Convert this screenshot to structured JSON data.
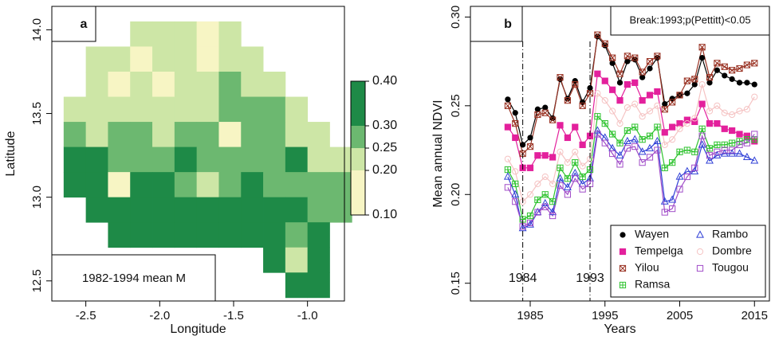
{
  "chart_data": [
    {
      "type": "heatmap",
      "panel_label": "a",
      "legend_text": "1982-1994 mean M",
      "x_label": "Longitude",
      "y_label": "Latitude",
      "xlim": [
        -2.73,
        -0.75
      ],
      "ylim": [
        12.38,
        14.14
      ],
      "xticks": [
        -2.5,
        {
          "value": -2.0,
          "label": "-2.0"
        },
        -1.5,
        {
          "value": -1.0,
          "label": "-1.0"
        }
      ],
      "yticks": [
        12.5,
        {
          "value": 13.0,
          "label": "13.0"
        },
        13.5,
        {
          "value": 14.0,
          "label": "14.0"
        }
      ],
      "x": [
        -2.575,
        -2.425,
        -2.275,
        -2.125,
        -1.975,
        -1.825,
        -1.675,
        -1.525,
        -1.375,
        -1.225,
        -1.075,
        -0.925,
        -0.775
      ],
      "y": [
        13.975,
        13.825,
        13.675,
        13.525,
        13.375,
        13.225,
        13.075,
        12.925,
        12.775,
        12.625,
        12.475
      ],
      "z": [
        [
          null,
          null,
          null,
          0.22,
          0.22,
          0.22,
          0.15,
          0.22,
          null,
          null,
          null,
          null,
          null
        ],
        [
          null,
          0.22,
          0.22,
          0.15,
          0.22,
          0.22,
          0.15,
          0.22,
          0.22,
          null,
          null,
          null,
          null
        ],
        [
          null,
          0.22,
          0.15,
          0.22,
          0.15,
          0.22,
          0.22,
          0.27,
          0.22,
          0.22,
          null,
          null,
          null
        ],
        [
          0.22,
          0.22,
          0.22,
          0.22,
          0.22,
          0.22,
          0.22,
          0.27,
          0.27,
          0.27,
          0.22,
          null,
          null
        ],
        [
          0.27,
          0.22,
          0.27,
          0.27,
          0.22,
          0.27,
          0.27,
          0.15,
          0.27,
          0.27,
          0.22,
          0.22,
          null
        ],
        [
          0.33,
          0.33,
          0.27,
          0.27,
          0.27,
          0.33,
          0.27,
          0.27,
          0.27,
          0.27,
          0.33,
          0.22,
          0.22
        ],
        [
          0.33,
          0.33,
          0.15,
          0.33,
          0.33,
          0.27,
          0.22,
          0.27,
          0.33,
          0.27,
          0.27,
          0.27,
          0.27
        ],
        [
          null,
          0.33,
          0.33,
          0.33,
          0.33,
          0.33,
          0.33,
          0.33,
          0.33,
          0.33,
          0.33,
          0.27,
          0.27
        ],
        [
          null,
          null,
          0.33,
          0.33,
          0.33,
          0.33,
          0.33,
          0.33,
          0.33,
          0.33,
          0.27,
          0.33,
          null
        ],
        [
          null,
          null,
          null,
          null,
          null,
          null,
          null,
          null,
          null,
          0.33,
          0.22,
          0.33,
          null
        ],
        [
          null,
          null,
          null,
          null,
          null,
          null,
          null,
          null,
          null,
          null,
          0.33,
          0.33,
          null
        ]
      ],
      "clim": [
        0.1,
        0.4
      ],
      "cticks": [
        {
          "value": 0.1,
          "label": "0.10"
        },
        {
          "value": 0.2,
          "label": "0.20"
        },
        {
          "value": 0.25,
          "label": "0.25"
        },
        {
          "value": 0.3,
          "label": "0.30"
        },
        {
          "value": 0.4,
          "label": "0.40"
        }
      ],
      "colors": [
        "#f7f5c4",
        "#cde6a6",
        "#6cb870",
        "#1e8a47"
      ]
    },
    {
      "type": "line",
      "panel_label": "b",
      "annotation": "Break:1993;p(Pettitt)<0.05",
      "x_label": "Years",
      "y_label": "Mean annual NDVI",
      "xlim": [
        1977,
        2017
      ],
      "ylim": [
        0.14,
        0.306
      ],
      "xticks": [
        1985,
        1995,
        2005,
        2015
      ],
      "yticks": [
        0.15,
        {
          "value": 0.2,
          "label": "0.20"
        },
        0.25,
        {
          "value": 0.3,
          "label": "0.30"
        }
      ],
      "vlines": [
        1984,
        1993
      ],
      "x": [
        1982,
        1983,
        1984,
        1985,
        1986,
        1987,
        1988,
        1989,
        1990,
        1991,
        1992,
        1993,
        1994,
        1995,
        1996,
        1997,
        1998,
        1999,
        2000,
        2001,
        2002,
        2003,
        2004,
        2005,
        2006,
        2007,
        2008,
        2009,
        2010,
        2011,
        2012,
        2013,
        2014,
        2015
      ],
      "series": [
        {
          "name": "Wayen",
          "color": "#000000",
          "marker": "dot",
          "values": [
            0.2536,
            0.246,
            0.228,
            0.232,
            0.248,
            0.249,
            0.243,
            0.265,
            0.254,
            0.264,
            0.252,
            0.26,
            0.289,
            0.284,
            0.274,
            0.263,
            0.275,
            0.276,
            0.266,
            0.271,
            0.277,
            0.251,
            0.254,
            0.256,
            0.257,
            0.262,
            0.277,
            0.263,
            0.27,
            0.267,
            0.265,
            0.263,
            0.263,
            0.262
          ]
        },
        {
          "name": "Tempelga",
          "color": "#e3209c",
          "marker": "filled-square",
          "values": [
            0.238,
            0.232,
            0.215,
            0.215,
            0.222,
            0.222,
            0.221,
            0.239,
            0.232,
            0.238,
            0.228,
            0.233,
            0.268,
            0.264,
            0.259,
            0.253,
            0.262,
            0.263,
            0.253,
            0.256,
            0.258,
            0.235,
            0.238,
            0.24,
            0.242,
            0.241,
            0.251,
            0.24,
            0.24,
            0.237,
            0.236,
            0.234,
            0.233,
            0.23
          ]
        },
        {
          "name": "Yilou",
          "color": "#9a3324",
          "marker": "square-x",
          "values": [
            0.25,
            0.24,
            0.223,
            0.227,
            0.245,
            0.246,
            0.242,
            0.266,
            0.253,
            0.262,
            0.25,
            0.257,
            0.29,
            0.285,
            0.277,
            0.268,
            0.278,
            0.277,
            0.269,
            0.275,
            0.278,
            0.248,
            0.252,
            0.256,
            0.264,
            0.265,
            0.283,
            0.266,
            0.274,
            0.272,
            0.27,
            0.271,
            0.273,
            0.274
          ]
        },
        {
          "name": "Ramsa",
          "color": "#2ec32e",
          "marker": "square-plus",
          "values": [
            0.214,
            0.206,
            0.186,
            0.188,
            0.197,
            0.2,
            0.196,
            0.215,
            0.209,
            0.218,
            0.21,
            0.214,
            0.244,
            0.24,
            0.234,
            0.229,
            0.236,
            0.238,
            0.231,
            0.233,
            0.238,
            0.215,
            0.218,
            0.224,
            0.225,
            0.224,
            0.237,
            0.226,
            0.228,
            0.228,
            0.229,
            0.23,
            0.231,
            0.231
          ]
        },
        {
          "name": "Rambo",
          "color": "#2f3fd6",
          "marker": "triangle",
          "values": [
            0.21,
            0.2,
            0.181,
            0.183,
            0.19,
            0.195,
            0.19,
            0.209,
            0.204,
            0.212,
            0.206,
            0.209,
            0.236,
            0.232,
            0.226,
            0.222,
            0.23,
            0.231,
            0.224,
            0.226,
            0.23,
            0.196,
            0.197,
            0.21,
            0.213,
            0.213,
            0.228,
            0.219,
            0.222,
            0.223,
            0.223,
            0.223,
            0.221,
            0.219
          ]
        },
        {
          "name": "Dombre",
          "color": "#f5c3c3",
          "marker": "circle",
          "values": [
            0.22,
            0.213,
            0.196,
            0.2,
            0.206,
            0.21,
            0.206,
            0.224,
            0.218,
            0.224,
            0.216,
            0.22,
            0.257,
            0.253,
            0.247,
            0.24,
            0.249,
            0.251,
            0.244,
            0.247,
            0.25,
            0.228,
            0.231,
            0.237,
            0.24,
            0.243,
            0.262,
            0.247,
            0.25,
            0.246,
            0.245,
            0.247,
            0.248,
            0.255
          ]
        },
        {
          "name": "Tougou",
          "color": "#a04cc8",
          "marker": "square",
          "values": [
            0.204,
            0.196,
            0.182,
            0.184,
            0.19,
            0.193,
            0.188,
            0.205,
            0.2,
            0.209,
            0.203,
            0.206,
            0.234,
            0.229,
            0.223,
            0.217,
            0.226,
            0.227,
            0.218,
            0.221,
            0.225,
            0.19,
            0.192,
            0.203,
            0.21,
            0.215,
            0.233,
            0.222,
            0.224,
            0.225,
            0.225,
            0.228,
            0.229,
            0.234
          ]
        }
      ]
    }
  ]
}
